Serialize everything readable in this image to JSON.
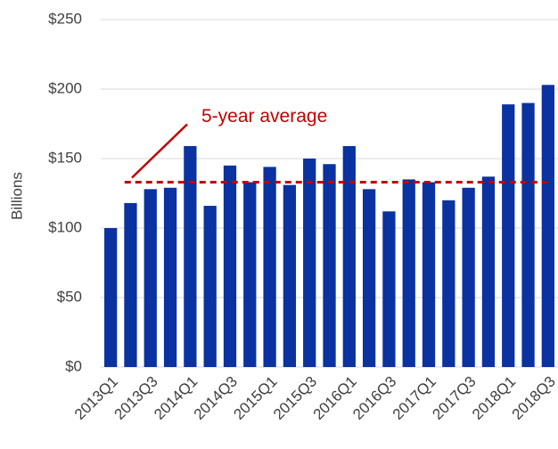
{
  "chart_data": {
    "type": "bar",
    "y_label": "Billions",
    "categories": [
      "2013Q1",
      null,
      "2013Q3",
      null,
      "2014Q1",
      null,
      "2014Q3",
      null,
      "2015Q1",
      null,
      "2015Q3",
      null,
      "2016Q1",
      null,
      "2016Q3",
      null,
      "2017Q1",
      null,
      "2017Q3",
      null,
      "2018Q1",
      null,
      "2018Q3"
    ],
    "values": [
      100,
      118,
      128,
      129,
      159,
      116,
      145,
      133,
      144,
      131,
      150,
      146,
      159,
      128,
      112,
      135,
      133,
      120,
      129,
      137,
      189,
      190,
      203
    ],
    "color": "#0a32a0",
    "ylim": [
      0,
      250
    ],
    "yticks": [
      {
        "value": 0,
        "label": "$0"
      },
      {
        "value": 50,
        "label": "$50"
      },
      {
        "value": 100,
        "label": "$100"
      },
      {
        "value": 150,
        "label": "$150"
      },
      {
        "value": 200,
        "label": "$200"
      },
      {
        "value": 250,
        "label": "$250"
      }
    ],
    "grid": true,
    "reference_line": {
      "value": 133,
      "label": "5-year average",
      "color": "#c00000"
    }
  }
}
